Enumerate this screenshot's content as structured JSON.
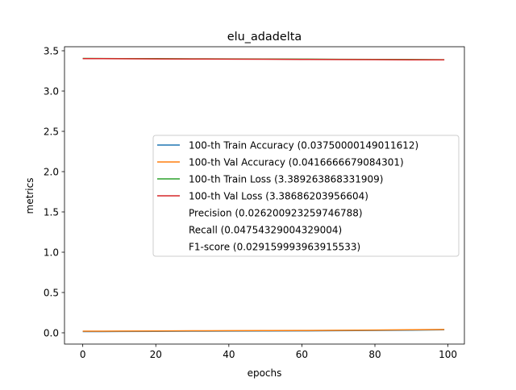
{
  "chart_data": {
    "type": "line",
    "title": "elu_adadelta",
    "xlabel": "epochs",
    "ylabel": "metrics",
    "xlim": [
      -5,
      104.5
    ],
    "ylim": [
      -0.14,
      3.55
    ],
    "xticks": [
      0,
      20,
      40,
      60,
      80,
      100
    ],
    "yticks": [
      0.0,
      0.5,
      1.0,
      1.5,
      2.0,
      2.5,
      3.0,
      3.5
    ],
    "xtick_labels": [
      "0",
      "20",
      "40",
      "60",
      "80",
      "100"
    ],
    "ytick_labels": [
      "0.0",
      "0.5",
      "1.0",
      "1.5",
      "2.0",
      "2.5",
      "3.0",
      "3.5"
    ],
    "grid": false,
    "legend_position": "center-right",
    "series": [
      {
        "name": "100-th Train Accuracy (0.03750000149011612)",
        "color": "#1f77b4",
        "x": [
          0,
          10,
          20,
          30,
          40,
          50,
          60,
          70,
          80,
          90,
          99
        ],
        "y": [
          0.015,
          0.016,
          0.018,
          0.02,
          0.021,
          0.022,
          0.024,
          0.026,
          0.029,
          0.033,
          0.0375
        ]
      },
      {
        "name": "100-th Val Accuracy (0.0416666679084301)",
        "color": "#ff7f0e",
        "x": [
          0,
          10,
          20,
          30,
          40,
          50,
          60,
          70,
          80,
          90,
          99
        ],
        "y": [
          0.02,
          0.021,
          0.023,
          0.025,
          0.026,
          0.027,
          0.029,
          0.031,
          0.034,
          0.038,
          0.0417
        ]
      },
      {
        "name": "100-th Train Loss (3.389263868331909)",
        "color": "#2ca02c",
        "x": [
          0,
          10,
          20,
          30,
          40,
          50,
          60,
          70,
          80,
          90,
          99
        ],
        "y": [
          3.405,
          3.403,
          3.402,
          3.4,
          3.399,
          3.397,
          3.396,
          3.394,
          3.393,
          3.391,
          3.3893
        ]
      },
      {
        "name": "100-th Val Loss (3.38686203956604)",
        "color": "#d62728",
        "x": [
          0,
          10,
          20,
          30,
          40,
          50,
          60,
          70,
          80,
          90,
          99
        ],
        "y": [
          3.403,
          3.401,
          3.399,
          3.398,
          3.396,
          3.395,
          3.393,
          3.391,
          3.39,
          3.388,
          3.3869
        ]
      }
    ],
    "legend_extra": [
      "Precision (0.026200923259746788)",
      "Recall (0.04754329004329004)",
      "F1-score (0.029159993963915533)"
    ]
  }
}
